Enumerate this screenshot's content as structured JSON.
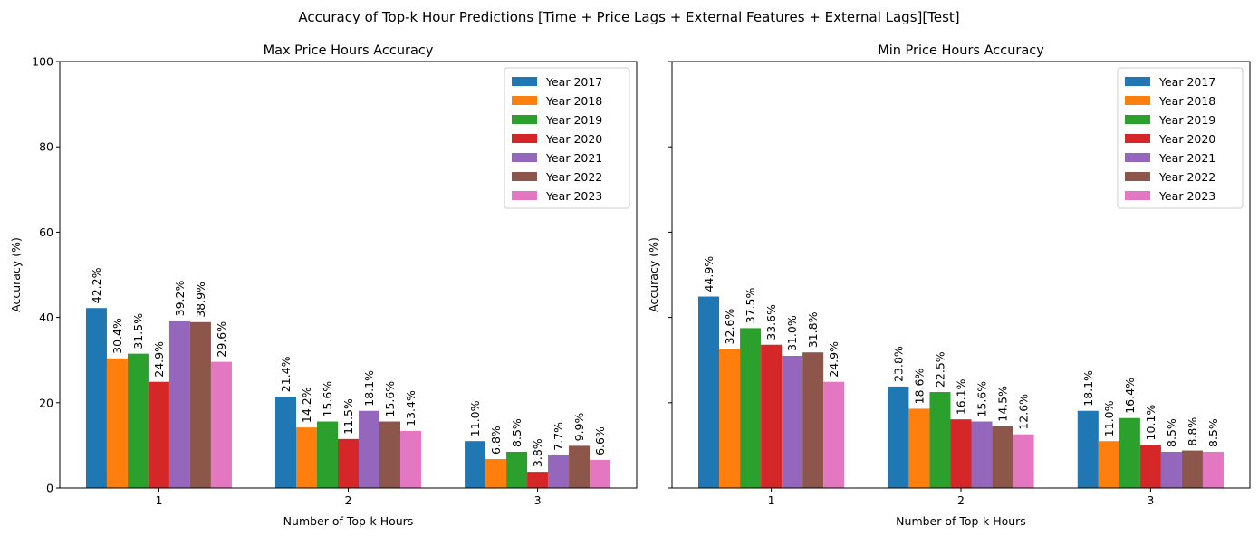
{
  "suptitle": "Accuracy of Top-k Hour Predictions [Time + Price Lags + External Features + External Lags][Test]",
  "colors": [
    "#1f77b4",
    "#ff7f0e",
    "#2ca02c",
    "#d62728",
    "#9467bd",
    "#8c564b",
    "#e377c2"
  ],
  "chart_data": [
    {
      "type": "bar",
      "title": "Max Price Hours Accuracy",
      "xlabel": "Number of Top-k Hours",
      "ylabel": "Accuracy (%)",
      "ylim": [
        0,
        100
      ],
      "yticks": [
        0,
        20,
        40,
        60,
        80,
        100
      ],
      "categories": [
        "1",
        "2",
        "3"
      ],
      "legend_position": "upper right",
      "grid": false,
      "series": [
        {
          "name": "Year 2017",
          "values": [
            42.2,
            21.4,
            11.0
          ],
          "labels": [
            "42.2%",
            "21.4%",
            "11.0%"
          ]
        },
        {
          "name": "Year 2018",
          "values": [
            30.4,
            14.2,
            6.8
          ],
          "labels": [
            "30.4%",
            "14.2%",
            "6.8%"
          ]
        },
        {
          "name": "Year 2019",
          "values": [
            31.5,
            15.6,
            8.5
          ],
          "labels": [
            "31.5%",
            "15.6%",
            "8.5%"
          ]
        },
        {
          "name": "Year 2020",
          "values": [
            24.9,
            11.5,
            3.8
          ],
          "labels": [
            "24.9%",
            "11.5%",
            "3.8%"
          ]
        },
        {
          "name": "Year 2021",
          "values": [
            39.2,
            18.1,
            7.7
          ],
          "labels": [
            "39.2%",
            "18.1%",
            "7.7%"
          ]
        },
        {
          "name": "Year 2022",
          "values": [
            38.9,
            15.6,
            9.9
          ],
          "labels": [
            "38.9%",
            "15.6%",
            "9.9%"
          ]
        },
        {
          "name": "Year 2023",
          "values": [
            29.6,
            13.4,
            6.6
          ],
          "labels": [
            "29.6%",
            "13.4%",
            "6.6%"
          ]
        }
      ]
    },
    {
      "type": "bar",
      "title": "Min Price Hours Accuracy",
      "xlabel": "Number of Top-k Hours",
      "ylabel": "Accuracy (%)",
      "ylim": [
        0,
        100
      ],
      "yticks": [
        0,
        20,
        40,
        60,
        80,
        100
      ],
      "categories": [
        "1",
        "2",
        "3"
      ],
      "legend_position": "upper right",
      "grid": false,
      "series": [
        {
          "name": "Year 2017",
          "values": [
            44.9,
            23.8,
            18.1
          ],
          "labels": [
            "44.9%",
            "23.8%",
            "18.1%"
          ]
        },
        {
          "name": "Year 2018",
          "values": [
            32.6,
            18.6,
            11.0
          ],
          "labels": [
            "32.6%",
            "18.6%",
            "11.0%"
          ]
        },
        {
          "name": "Year 2019",
          "values": [
            37.5,
            22.5,
            16.4
          ],
          "labels": [
            "37.5%",
            "22.5%",
            "16.4%"
          ]
        },
        {
          "name": "Year 2020",
          "values": [
            33.6,
            16.1,
            10.1
          ],
          "labels": [
            "33.6%",
            "16.1%",
            "10.1%"
          ]
        },
        {
          "name": "Year 2021",
          "values": [
            31.0,
            15.6,
            8.5
          ],
          "labels": [
            "31.0%",
            "15.6%",
            "8.5%"
          ]
        },
        {
          "name": "Year 2022",
          "values": [
            31.8,
            14.5,
            8.8
          ],
          "labels": [
            "31.8%",
            "14.5%",
            "8.8%"
          ]
        },
        {
          "name": "Year 2023",
          "values": [
            24.9,
            12.6,
            8.5
          ],
          "labels": [
            "24.9%",
            "12.6%",
            "8.5%"
          ]
        }
      ]
    }
  ]
}
